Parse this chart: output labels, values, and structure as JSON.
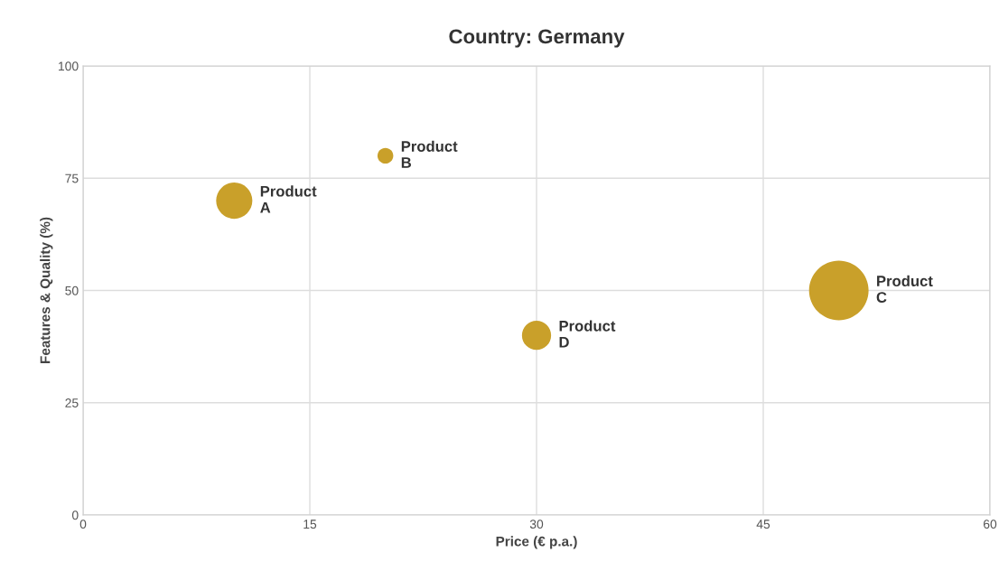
{
  "chart_data": {
    "type": "bubble",
    "title": "Country: Germany",
    "xlabel": "Price (€ p.a.)",
    "ylabel": "Features & Quality (%)",
    "x": [
      10,
      20,
      50,
      30
    ],
    "series": [
      {
        "color": "#c9a02a",
        "values": [
          70,
          80,
          50,
          40
        ],
        "sizes": [
          0.37,
          0.07,
          1,
          0.24
        ]
      }
    ],
    "xlim": [
      0,
      60
    ],
    "xticks": [
      0,
      15,
      30,
      45,
      60
    ],
    "ylim": [
      0,
      100
    ],
    "yticks": [
      0,
      25,
      50,
      75,
      100
    ],
    "grid": true,
    "annotations": [
      {
        "text": "Product\nA",
        "x": 10,
        "y": 70
      },
      {
        "text": "Product\nB",
        "x": 20,
        "y": 80
      },
      {
        "text": "Product\nC",
        "x": 50,
        "y": 50
      },
      {
        "text": "Product\nD",
        "x": 30,
        "y": 40
      }
    ]
  }
}
